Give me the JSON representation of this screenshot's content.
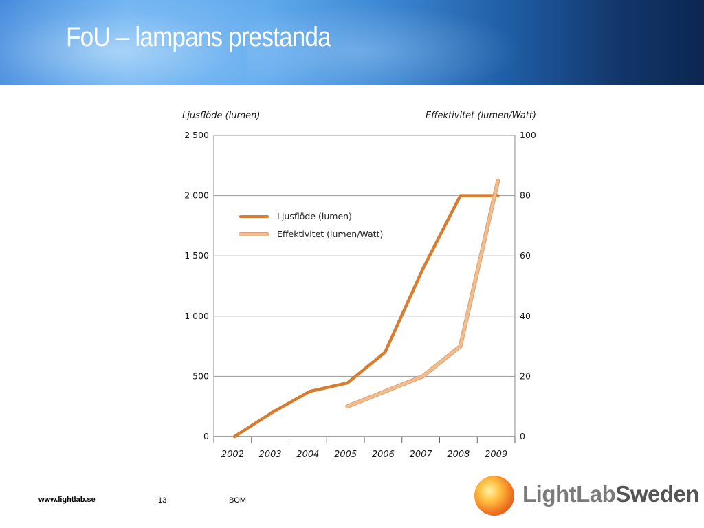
{
  "slide": {
    "title": "FoU – lampans prestanda"
  },
  "footer": {
    "url": "www.lightlab.se",
    "page_number": "13",
    "note": "BOM"
  },
  "logo": {
    "part1": "LightLab",
    "part2": "Sweden"
  },
  "chart_data": {
    "type": "line",
    "left_axis_title": "Ljusflöde (lumen)",
    "right_axis_title": "Effektivitet (lumen/Watt)",
    "categories": [
      "2002",
      "2003",
      "2004",
      "2005",
      "2006",
      "2007",
      "2008",
      "2009"
    ],
    "left_ylim": [
      0,
      2500
    ],
    "right_ylim": [
      0,
      100
    ],
    "left_ticks": [
      {
        "value": 0,
        "label": "0"
      },
      {
        "value": 500,
        "label": "500"
      },
      {
        "value": 1000,
        "label": "1 000"
      },
      {
        "value": 1500,
        "label": "1 500"
      },
      {
        "value": 2000,
        "label": "2 000"
      },
      {
        "value": 2500,
        "label": "2 500"
      }
    ],
    "right_ticks": [
      {
        "value": 0,
        "label": "0"
      },
      {
        "value": 20,
        "label": "20"
      },
      {
        "value": 40,
        "label": "40"
      },
      {
        "value": 60,
        "label": "60"
      },
      {
        "value": 80,
        "label": "80"
      },
      {
        "value": 100,
        "label": "100"
      }
    ],
    "grid": "horizontal",
    "legend_position": "upper-left",
    "series": [
      {
        "name": "Ljusflöde (lumen)",
        "axis": "left",
        "color": "#d97c2f",
        "points": [
          {
            "x": 2002.0,
            "y": 0
          },
          {
            "x": 2003.0,
            "y": 200
          },
          {
            "x": 2004.0,
            "y": 375
          },
          {
            "x": 2005.0,
            "y": 445
          },
          {
            "x": 2006.0,
            "y": 700
          },
          {
            "x": 2007.0,
            "y": 1390
          },
          {
            "x": 2008.0,
            "y": 2000
          },
          {
            "x": 2009.0,
            "y": 2000
          }
        ]
      },
      {
        "name": "Effektivitet (lumen/Watt)",
        "axis": "right",
        "color": "#f2bd8e",
        "points": [
          {
            "x": 2005.0,
            "y": 10
          },
          {
            "x": 2007.0,
            "y": 20
          },
          {
            "x": 2008.0,
            "y": 30
          },
          {
            "x": 2009.0,
            "y": 85
          }
        ]
      }
    ]
  }
}
